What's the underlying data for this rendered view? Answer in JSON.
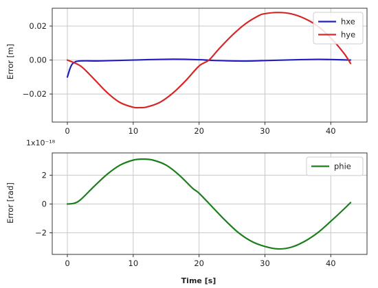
{
  "chart_data": [
    {
      "type": "line",
      "title": "",
      "xlabel": "",
      "ylabel": "Error [m]",
      "xlim": [
        -2.3,
        45.5
      ],
      "ylim": [
        -0.0365,
        0.0305
      ],
      "grid": true,
      "legend_position": "top-right",
      "x_ticks": [
        0,
        10,
        20,
        30,
        40
      ],
      "x_tick_labels": [
        "0",
        "10",
        "20",
        "30",
        "40"
      ],
      "y_ticks": [
        -0.02,
        0.0,
        0.02
      ],
      "y_tick_labels": [
        "−0.02",
        "0.00",
        "0.02"
      ],
      "series": [
        {
          "name": "hxe",
          "color": "#1f1fbf",
          "points": [
            [
              0,
              -0.01
            ],
            [
              0.5,
              -0.004
            ],
            [
              1,
              -0.0015
            ],
            [
              2,
              -0.0005
            ],
            [
              5,
              -0.0005
            ],
            [
              10,
              0.0
            ],
            [
              16,
              0.0005
            ],
            [
              20,
              0.0002
            ],
            [
              22,
              -0.0002
            ],
            [
              27,
              -0.0006
            ],
            [
              30,
              -0.0003
            ],
            [
              35,
              0.0002
            ],
            [
              38,
              0.0004
            ],
            [
              40,
              0.0003
            ],
            [
              43,
              0.0
            ]
          ]
        },
        {
          "name": "hye",
          "color": "#d62728",
          "points": [
            [
              0,
              0.0
            ],
            [
              2,
              -0.0035
            ],
            [
              4,
              -0.011
            ],
            [
              6,
              -0.019
            ],
            [
              8,
              -0.025
            ],
            [
              10,
              -0.0278
            ],
            [
              11,
              -0.028
            ],
            [
              12,
              -0.0277
            ],
            [
              14,
              -0.025
            ],
            [
              16,
              -0.0195
            ],
            [
              18,
              -0.012
            ],
            [
              20,
              -0.0035
            ],
            [
              21.5,
              0.0
            ],
            [
              23,
              0.0065
            ],
            [
              25,
              0.0145
            ],
            [
              27,
              0.0212
            ],
            [
              29,
              0.026
            ],
            [
              30,
              0.0273
            ],
            [
              32,
              0.028
            ],
            [
              34,
              0.0272
            ],
            [
              36,
              0.0245
            ],
            [
              38,
              0.02
            ],
            [
              40,
              0.013
            ],
            [
              42,
              0.004
            ],
            [
              43,
              -0.002
            ]
          ]
        }
      ]
    },
    {
      "type": "line",
      "title": "",
      "xlabel": "Time [s]",
      "ylabel": "Error [rad]",
      "y_scale_label": "1x10⁻¹⁸",
      "xlim": [
        -2.3,
        45.5
      ],
      "ylim": [
        -3.5,
        3.55
      ],
      "grid": true,
      "legend_position": "top-right",
      "x_ticks": [
        0,
        10,
        20,
        30,
        40
      ],
      "x_tick_labels": [
        "0",
        "10",
        "20",
        "30",
        "40"
      ],
      "y_ticks": [
        -2,
        0,
        2
      ],
      "y_tick_labels": [
        "−2",
        "0",
        "2"
      ],
      "series": [
        {
          "name": "phie",
          "color": "#1a7f1a",
          "points": [
            [
              0,
              0.0
            ],
            [
              1,
              0.05
            ],
            [
              2,
              0.3
            ],
            [
              4,
              1.2
            ],
            [
              6,
              2.05
            ],
            [
              8,
              2.7
            ],
            [
              10,
              3.05
            ],
            [
              11.5,
              3.12
            ],
            [
              13,
              3.05
            ],
            [
              15,
              2.7
            ],
            [
              17,
              2.0
            ],
            [
              19,
              1.1
            ],
            [
              20,
              0.75
            ],
            [
              22,
              -0.2
            ],
            [
              24,
              -1.15
            ],
            [
              26,
              -2.0
            ],
            [
              28,
              -2.6
            ],
            [
              30,
              -2.95
            ],
            [
              32,
              -3.12
            ],
            [
              34,
              -3.0
            ],
            [
              36,
              -2.6
            ],
            [
              38,
              -2.0
            ],
            [
              40,
              -1.2
            ],
            [
              42,
              -0.35
            ],
            [
              43,
              0.1
            ]
          ]
        }
      ]
    }
  ]
}
